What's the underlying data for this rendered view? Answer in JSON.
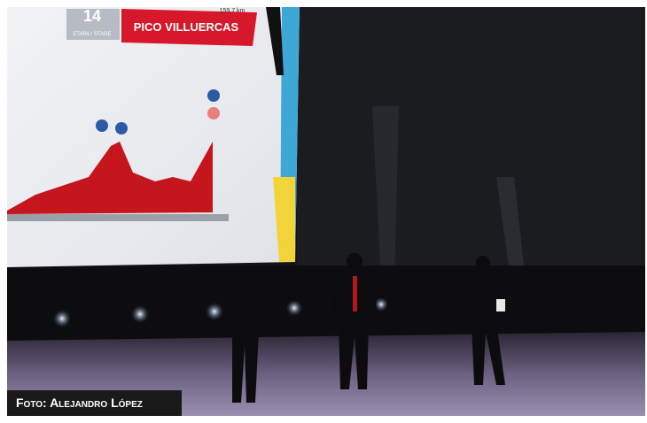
{
  "screen": {
    "stage_number": "14",
    "stage_label": "ETAPA / STAGE",
    "stage_name": "PICO VILLUERCAS",
    "distance": "159,7 km"
  },
  "caption": "Foto: Alejandro López"
}
